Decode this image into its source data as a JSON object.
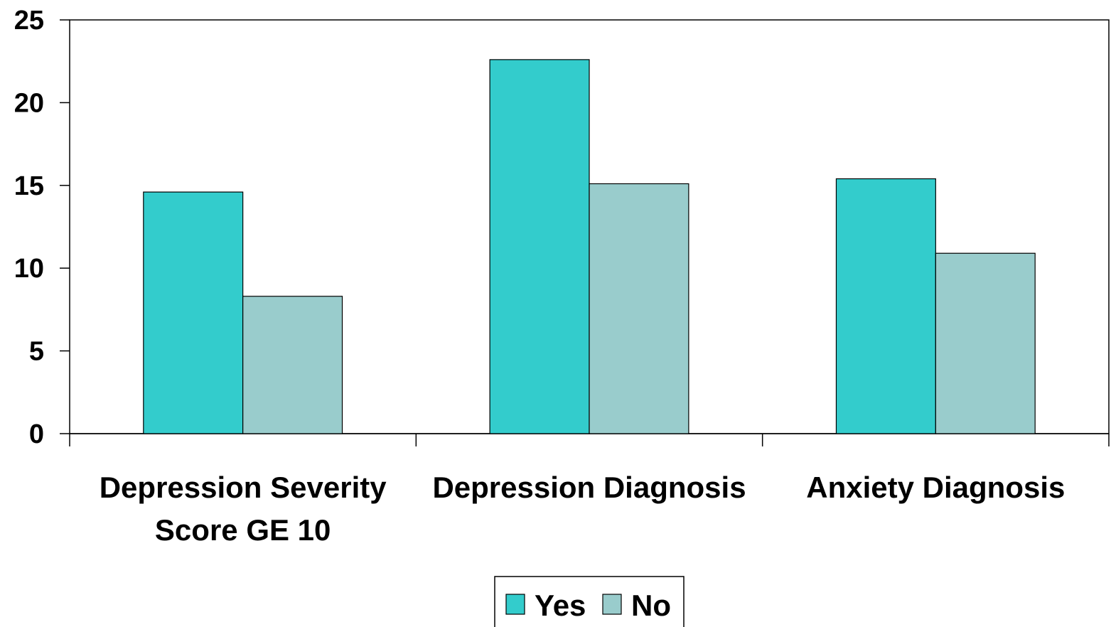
{
  "chart_data": {
    "type": "bar",
    "title": "",
    "xlabel": "",
    "ylabel": "",
    "categories": [
      [
        "Depression Severity",
        "Score GE 10"
      ],
      [
        "Depression Diagnosis"
      ],
      [
        "Anxiety Diagnosis"
      ]
    ],
    "series": [
      {
        "name": "Yes",
        "values": [
          14.6,
          22.6,
          15.4
        ],
        "color": "#33CCCC"
      },
      {
        "name": "No",
        "values": [
          8.3,
          15.1,
          10.9
        ],
        "color": "#99CCCC"
      }
    ],
    "ylim": [
      0,
      25
    ],
    "yticks": [
      0,
      5,
      10,
      15,
      20,
      25
    ],
    "grid": false,
    "legend_position": "bottom-center"
  }
}
